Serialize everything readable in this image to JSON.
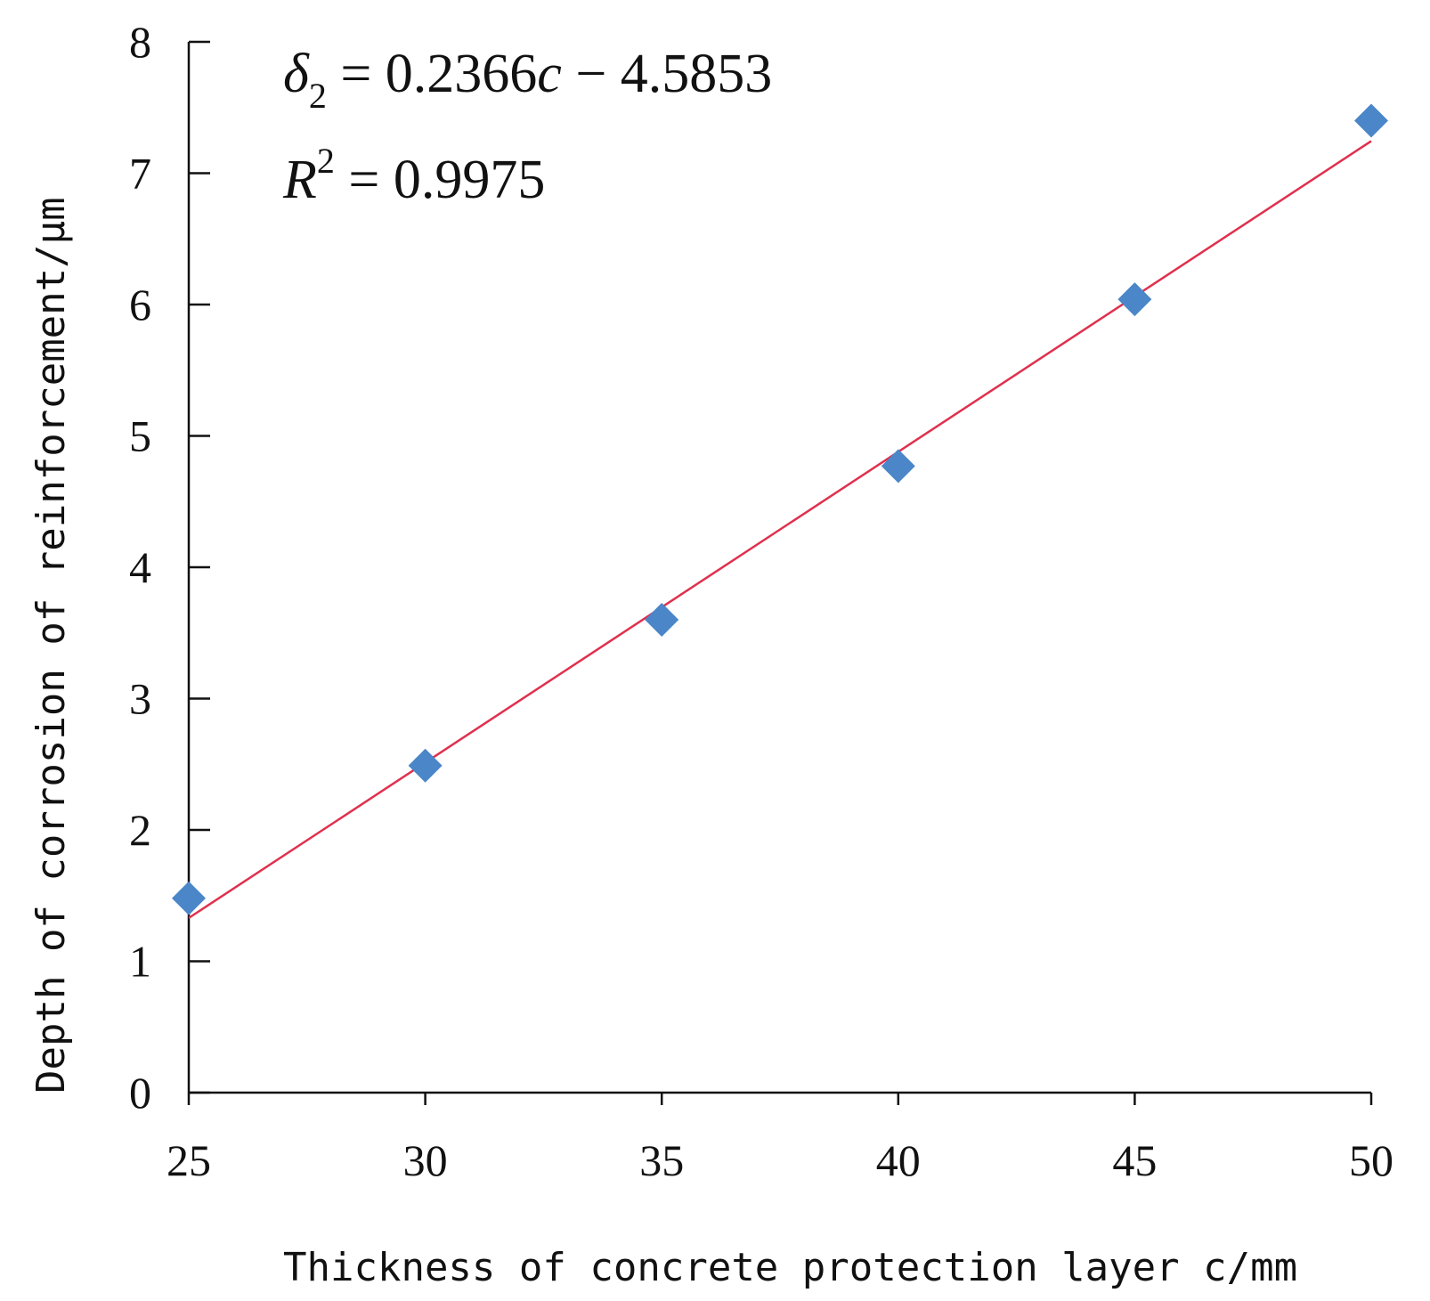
{
  "chart_data": {
    "type": "scatter",
    "title": "",
    "xlabel": "Thickness of concrete protection layer c/mm",
    "ylabel": "Depth of corrosion of reinforcement/μm",
    "xlim": [
      25,
      50
    ],
    "ylim": [
      0,
      8
    ],
    "x_ticks": [
      "25",
      "30",
      "35",
      "40",
      "45",
      "50"
    ],
    "y_ticks": [
      "0",
      "1",
      "2",
      "3",
      "4",
      "5",
      "6",
      "7",
      "8"
    ],
    "grid": false,
    "legend": "none",
    "series": [
      {
        "marker": "diamond",
        "color": "#4a86c8",
        "points": [
          {
            "x": 25,
            "y": 1.48
          },
          {
            "x": 30,
            "y": 2.49
          },
          {
            "x": 35,
            "y": 3.6
          },
          {
            "x": 40,
            "y": 4.77
          },
          {
            "x": 45,
            "y": 6.04
          },
          {
            "x": 50,
            "y": 7.4
          }
        ]
      }
    ],
    "fit_line": {
      "color": "#e0304e",
      "slope": 0.2366,
      "intercept": -4.5853,
      "x_range": [
        25,
        50
      ]
    },
    "annotations": {
      "equation": {
        "lhs_symbol": "δ",
        "lhs_subscript": "2",
        "rhs_prefix": " = 0.2366",
        "rhs_var": "c",
        "rhs_suffix": " − 4.5853"
      },
      "r_squared": {
        "symbol": "R",
        "superscript": "2",
        "value_text": " = 0.9975"
      }
    }
  }
}
